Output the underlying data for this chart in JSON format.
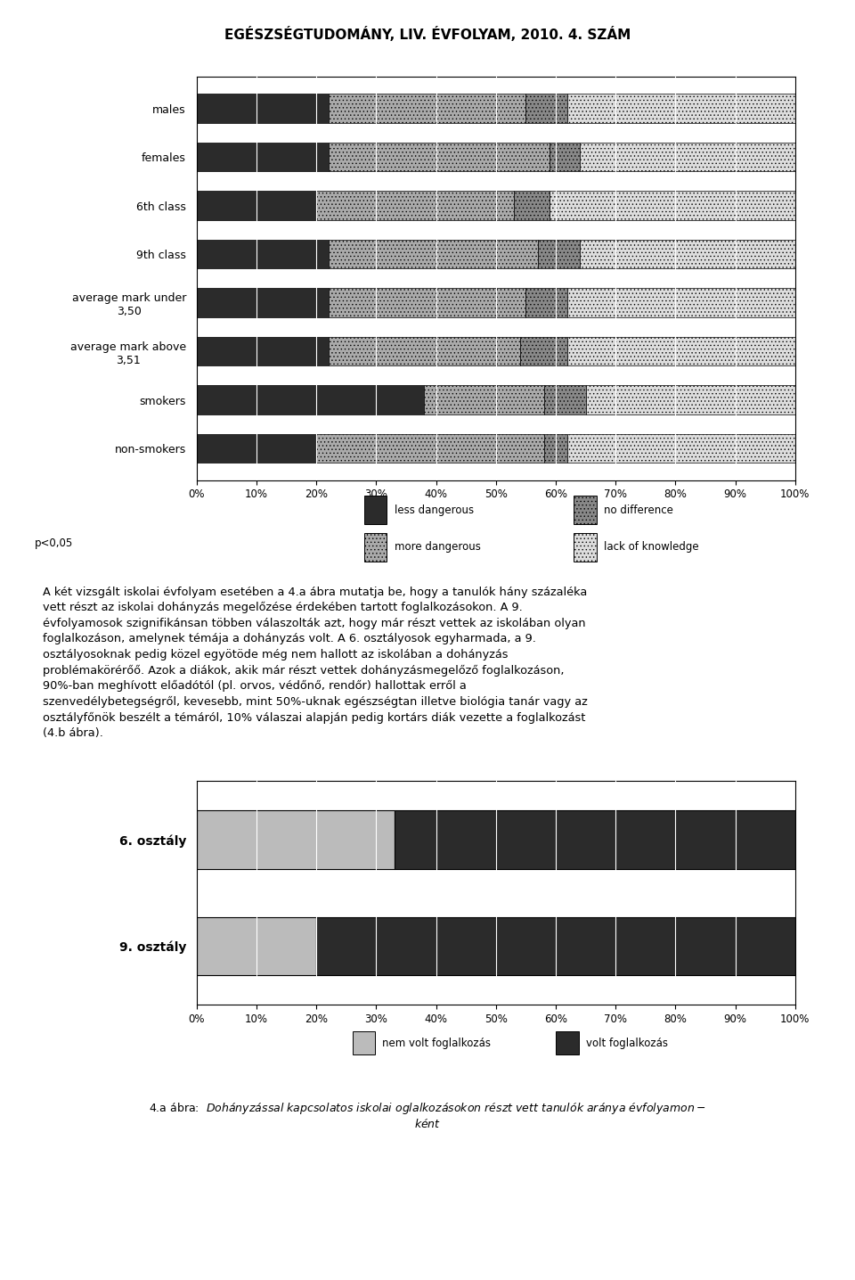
{
  "page_title": "EGÉSZSÉGTUDOMÁNY, LIV. ÉVFOLYAM, 2010. 4. SZÁM",
  "chart1_categories": [
    "males",
    "females",
    "6th class",
    "9th class",
    "average mark under\n3,50",
    "average mark above\n3,51",
    "smokers",
    "non-smokers"
  ],
  "chart1_data": {
    "less_dangerous": [
      22,
      22,
      20,
      22,
      22,
      22,
      38,
      20
    ],
    "more_dangerous": [
      33,
      37,
      33,
      35,
      33,
      32,
      20,
      38
    ],
    "no_difference": [
      7,
      5,
      6,
      7,
      7,
      8,
      7,
      4
    ],
    "lack_of_knowledge": [
      38,
      36,
      41,
      36,
      38,
      38,
      35,
      38
    ]
  },
  "chart1_colors": {
    "less_dangerous": "#2b2b2b",
    "more_dangerous": "#aaaaaa",
    "no_difference": "#888888",
    "lack_of_knowledge": "#dddddd"
  },
  "chart1_note": "p<0,05",
  "chart2_categories": [
    "6. osztály",
    "9. osztály"
  ],
  "chart2_data": {
    "nem_volt": [
      33,
      20
    ],
    "volt": [
      67,
      80
    ]
  },
  "chart2_colors": {
    "nem_volt": "#bbbbbb",
    "volt": "#2b2b2b"
  }
}
